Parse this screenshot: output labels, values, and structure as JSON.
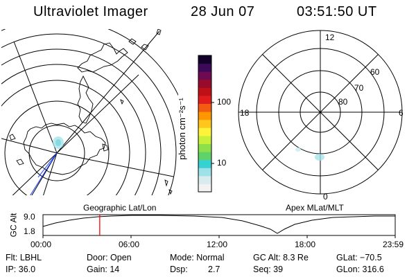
{
  "header": {
    "instrument": "Ultraviolet Imager",
    "date": "28 Jun 07",
    "time": "03:51:50 UT"
  },
  "colorbar": {
    "unit_label": "photon cm⁻²s⁻¹",
    "ticks": [
      "100",
      "10"
    ],
    "colors": [
      "#f2f2f2",
      "#d8ecef",
      "#9fe1e8",
      "#35d1d3",
      "#5fd36a",
      "#8ee04a",
      "#c8ef3a",
      "#fff23a",
      "#ffc61d",
      "#ff9700",
      "#f25c12",
      "#e01c1c",
      "#bf0f17",
      "#980b2a",
      "#6d0a52",
      "#3c0a59",
      "#13002a"
    ]
  },
  "left_map": {
    "label": "Geographic Lat/Lon"
  },
  "right_map": {
    "label": "Apex MLat/MLT",
    "clock_labels": {
      "top": "12",
      "left": "18",
      "right": "6",
      "bottom": "0"
    },
    "lat_labels": [
      "60",
      "70",
      "80"
    ]
  },
  "altitude_panel": {
    "axis_label": "GC Alt",
    "y_ticks": [
      "9.0",
      "1.8"
    ],
    "x_ticks": [
      "00:00",
      "06:00",
      "12:00",
      "18:00",
      "23:59"
    ],
    "marker_time": "03:51:50",
    "marker_color": "#ff0000"
  },
  "info": {
    "flt": "Flt: LBHL",
    "ip": "IP: 36.0",
    "door": "Door: Open",
    "gain": "Gain: 14",
    "mode": "Mode: Normal",
    "dsp_label": "Dsp:",
    "dsp_value": "2.7",
    "gc_alt": "GC Alt: 8.3 Re",
    "seq": "Seq: 39",
    "glat": "GLat: −70.5",
    "glon": "GLon: 316.6"
  }
}
